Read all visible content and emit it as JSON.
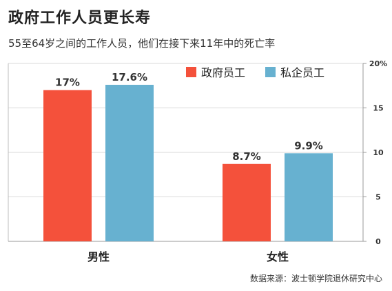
{
  "chart_data": {
    "type": "bar",
    "title": "政府工作人员更长寿",
    "subtitle": "55至64岁之间的工作人员，他们在接下来11年中的死亡率",
    "categories": [
      "男性",
      "女性"
    ],
    "series": [
      {
        "name": "政府员工",
        "values": [
          17,
          8.7
        ],
        "labels": [
          "17%",
          "8.7%"
        ],
        "color": "#f4513b"
      },
      {
        "name": "私企员工",
        "values": [
          17.6,
          9.9
        ],
        "labels": [
          "17.6%",
          "9.9%"
        ],
        "color": "#67b1d0"
      }
    ],
    "yticks": [
      0,
      5,
      10,
      15,
      20
    ],
    "ytick_labels": [
      "0",
      "5",
      "10",
      "15",
      "20%"
    ],
    "ylim": [
      0,
      20
    ],
    "grid": true,
    "legend_position": "top-right",
    "source": "数据来源：波士顿学院退休研究中心"
  }
}
